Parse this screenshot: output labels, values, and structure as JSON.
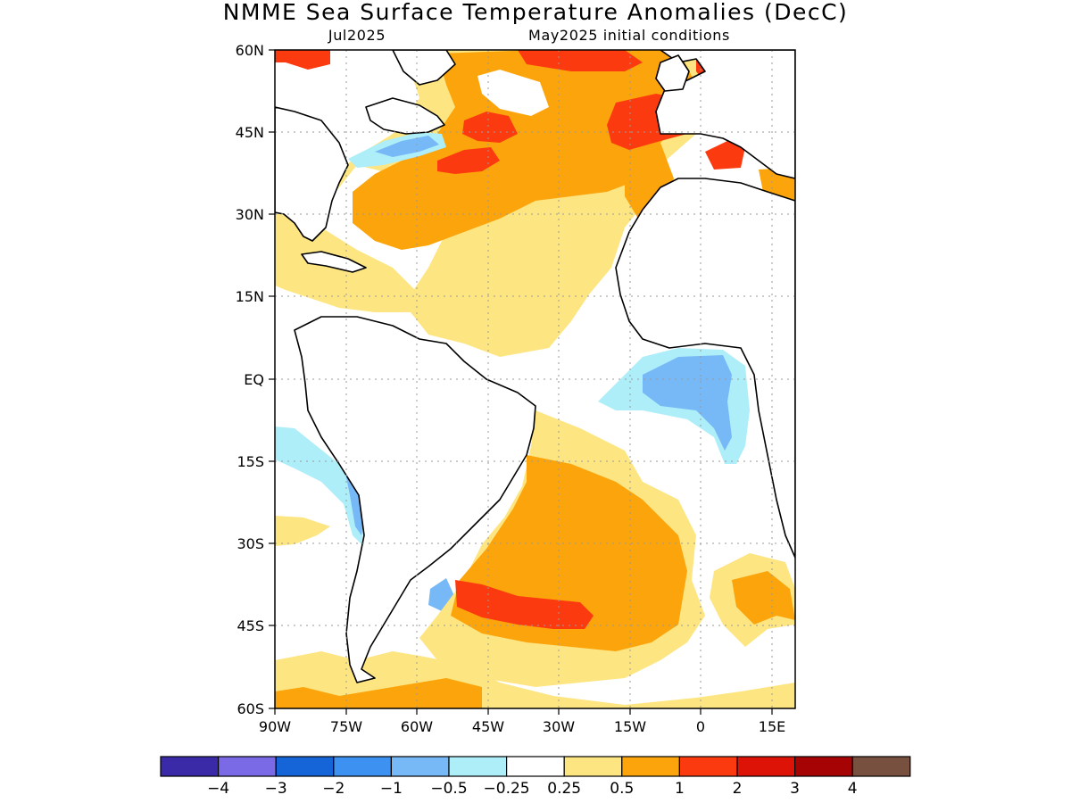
{
  "title": "NMME Sea Surface Temperature Anomalies (DecC)",
  "target_month": "Jul2025",
  "initial_conditions": "May2025 initial conditions",
  "lat_labels": [
    "60N",
    "45N",
    "30N",
    "15N",
    "EQ",
    "15S",
    "30S",
    "45S",
    "60S"
  ],
  "lon_labels": [
    "90W",
    "75W",
    "60W",
    "45W",
    "30W",
    "15W",
    "0",
    "15E"
  ],
  "map_extent": {
    "lon_min": -90,
    "lon_max": 20,
    "lat_min": -60,
    "lat_max": 60
  },
  "colorbar": {
    "colors": [
      "#3a2aa8",
      "#7a6ae6",
      "#1565d8",
      "#3d91f0",
      "#77b8f7",
      "#aeeef8",
      "#ffffff",
      "#fde582",
      "#fca40b",
      "#fc3a10",
      "#de1308",
      "#a60404",
      "#77503f"
    ],
    "labels": [
      "−4",
      "−3",
      "−2",
      "−1",
      "−0.5",
      "−0.25",
      "0.25",
      "0.5",
      "1",
      "2",
      "3",
      "4"
    ]
  },
  "colors": {
    "ocean_neutral": "#ffffff",
    "land": "#ffffff",
    "coastline": "#000000",
    "gridline": "#9a9a9a"
  }
}
